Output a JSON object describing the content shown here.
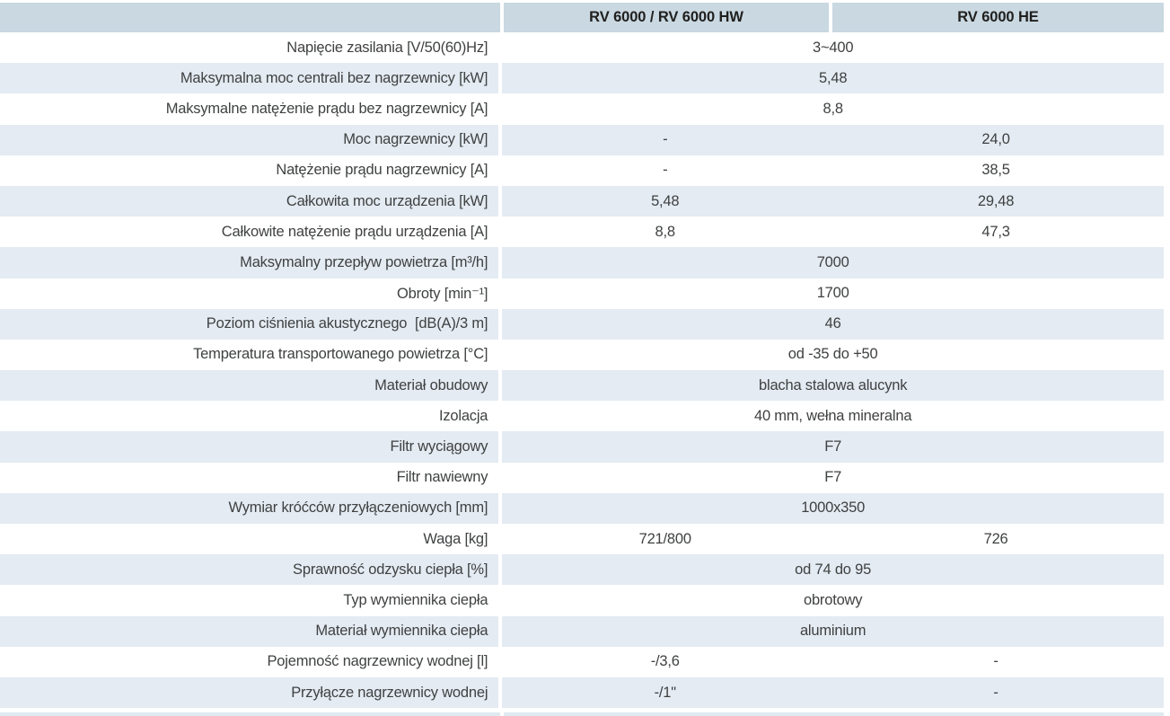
{
  "table": {
    "column_headers": [
      "RV 6000 / RV 6000 HW",
      "RV 6000 HE"
    ],
    "rows": [
      {
        "label": "Napięcie zasilania [V/50(60)Hz]",
        "merged": "3~400"
      },
      {
        "label": "Maksymalna moc centrali bez nagrzewnicy [kW]",
        "merged": "5,48"
      },
      {
        "label": "Maksymalne natężenie prądu bez nagrzewnicy [A]",
        "merged": "8,8"
      },
      {
        "label": "Moc nagrzewnicy [kW]",
        "col1": "-",
        "col2": "24,0"
      },
      {
        "label": "Natężenie prądu nagrzewnicy [A]",
        "col1": "-",
        "col2": "38,5"
      },
      {
        "label": "Całkowita moc urządzenia [kW]",
        "col1": "5,48",
        "col2": "29,48"
      },
      {
        "label": "Całkowite natężenie prądu urządzenia [A]",
        "col1": "8,8",
        "col2": "47,3"
      },
      {
        "label": "Maksymalny przepływ powietrza [m³/h]",
        "merged": "7000"
      },
      {
        "label": "Obroty [min⁻¹]",
        "merged": "1700"
      },
      {
        "label": "Poziom ciśnienia akustycznego  [dB(A)/3 m]",
        "merged": "46"
      },
      {
        "label": "Temperatura transportowanego powietrza [°C]",
        "merged": "od -35 do +50"
      },
      {
        "label": "Materiał obudowy",
        "merged": "blacha stalowa alucynk"
      },
      {
        "label": "Izolacja",
        "merged": "40 mm, wełna mineralna"
      },
      {
        "label": "Filtr wyciągowy",
        "merged": "F7"
      },
      {
        "label": "Filtr nawiewny",
        "merged": "F7"
      },
      {
        "label": "Wymiar króćców przyłączeniowych [mm]",
        "merged": "1000x350"
      },
      {
        "label": "Waga [kg]",
        "col1": "721/800",
        "col2": "726"
      },
      {
        "label": "Sprawność odzysku ciepła [%]",
        "merged": "od 74 do 95"
      },
      {
        "label": "Typ wymiennika ciepła",
        "merged": "obrotowy"
      },
      {
        "label": "Materiał wymiennika ciepła",
        "merged": "aluminium"
      },
      {
        "label": "Pojemność nagrzewnicy wodnej [l]",
        "col1": "-/3,6",
        "col2": "-"
      },
      {
        "label": "Przyłącze nagrzewnicy wodnej",
        "col1": "-/1\"",
        "col2": "-"
      }
    ],
    "colors": {
      "header_bg": "#c9d8e1",
      "header_text": "#21201e",
      "row_bg": "#ffffff",
      "row_alt_bg": "#e4ebf2",
      "text": "#3f4142",
      "bottom_strip_bg": "#dfe9f0"
    }
  }
}
